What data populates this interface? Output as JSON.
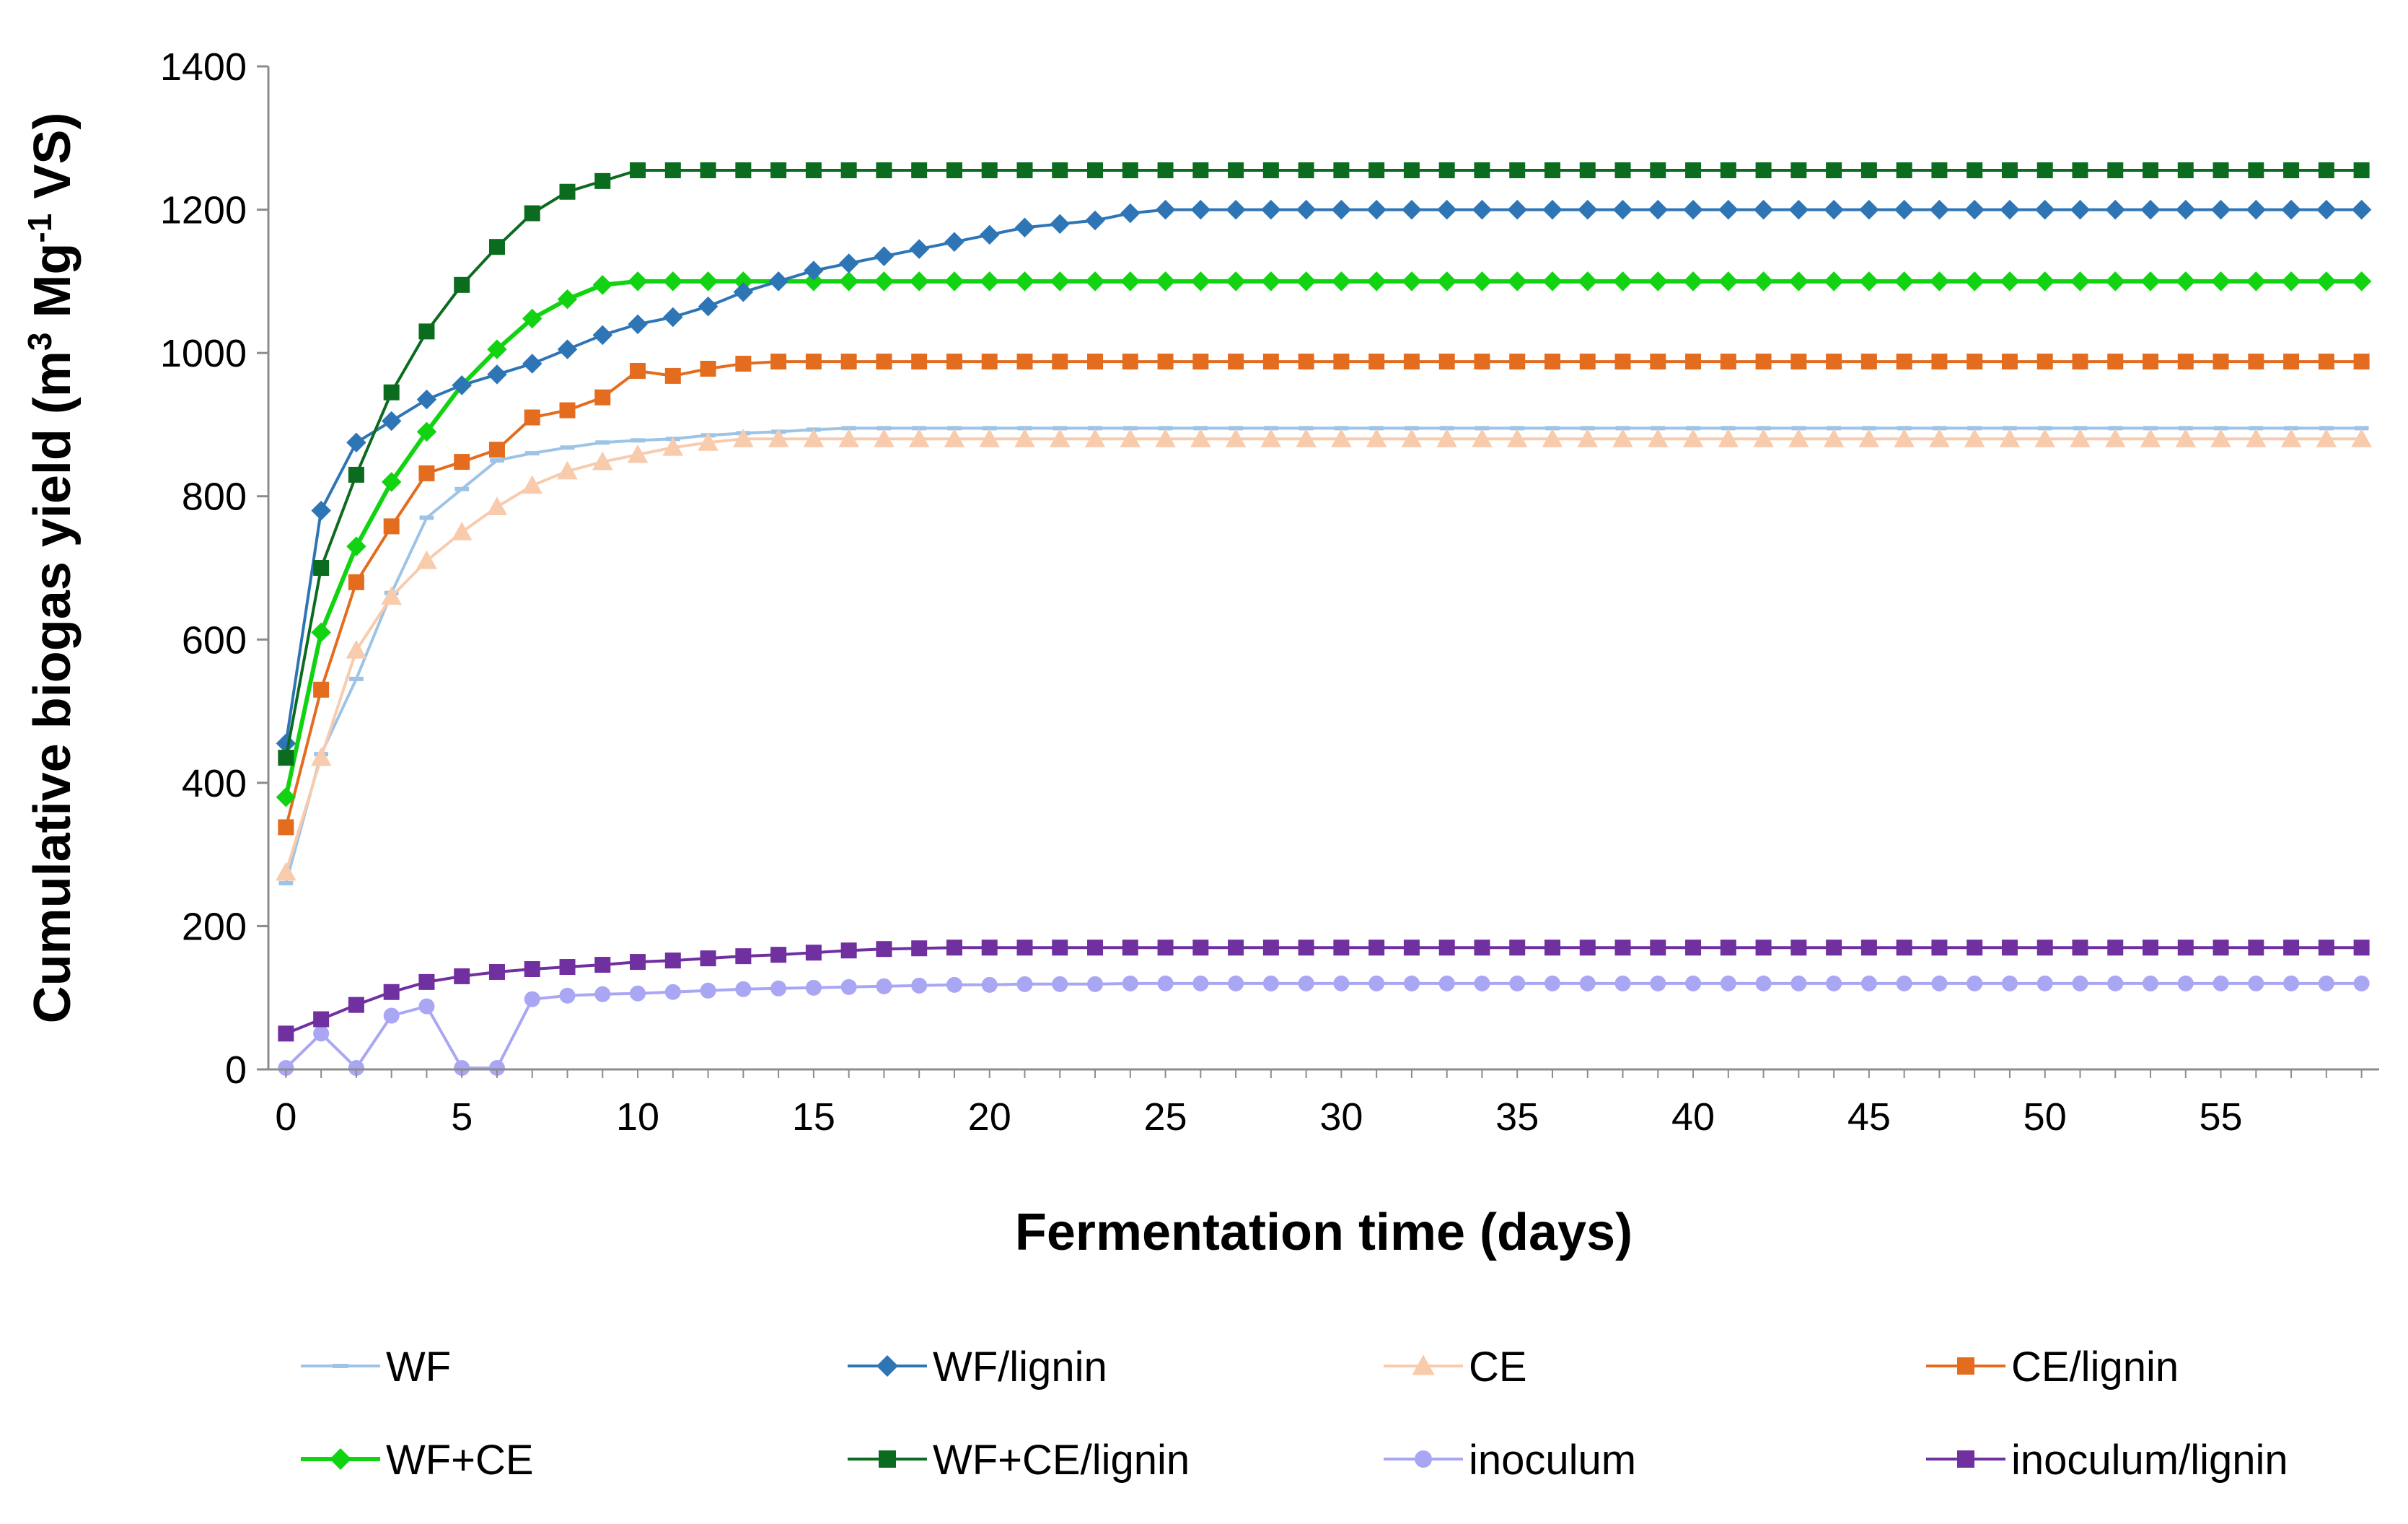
{
  "chart_data": {
    "type": "line",
    "title": "",
    "xlabel": "Fermentation time (days)",
    "ylabel_parts": [
      "Cumulative biogas yield (m",
      "3",
      " Mg",
      "-1",
      " VS)"
    ],
    "xlim": [
      -0.5,
      59.5
    ],
    "ylim": [
      0,
      1400
    ],
    "xticks": [
      0,
      5,
      10,
      15,
      20,
      25,
      30,
      35,
      40,
      45,
      50,
      55
    ],
    "yticks": [
      0,
      200,
      400,
      600,
      800,
      1000,
      1200,
      1400
    ],
    "grid": false,
    "legend_position": "bottom",
    "x": [
      0,
      1,
      2,
      3,
      4,
      5,
      6,
      7,
      8,
      9,
      10,
      11,
      12,
      13,
      14,
      15,
      16,
      17,
      18,
      19,
      20,
      21,
      22,
      23,
      24,
      25,
      26,
      27,
      28,
      29,
      30,
      31,
      32,
      33,
      34,
      35,
      36,
      37,
      38,
      39,
      40,
      41,
      42,
      43,
      44,
      45,
      46,
      47,
      48,
      49,
      50,
      51,
      52,
      53,
      54,
      55,
      56,
      57,
      58,
      59
    ],
    "series": [
      {
        "name": "WF",
        "color": "#9DC3E6",
        "marker": "dash",
        "values": [
          260,
          440,
          545,
          665,
          770,
          810,
          850,
          860,
          868,
          875,
          878,
          880,
          885,
          888,
          890,
          893,
          895,
          895,
          895,
          895,
          895,
          895,
          895,
          895,
          895,
          895,
          895,
          895,
          895,
          895,
          895,
          895,
          895,
          895,
          895,
          895,
          895,
          895,
          895,
          895,
          895,
          895,
          895,
          895,
          895,
          895,
          895,
          895,
          895,
          895,
          895,
          895,
          895,
          895,
          895,
          895,
          895,
          895,
          895,
          895
        ]
      },
      {
        "name": "WF/lignin",
        "color": "#2E75B6",
        "marker": "diamond",
        "values": [
          455,
          780,
          875,
          905,
          935,
          955,
          970,
          985,
          1005,
          1025,
          1040,
          1050,
          1065,
          1085,
          1100,
          1115,
          1125,
          1135,
          1145,
          1155,
          1165,
          1175,
          1180,
          1185,
          1195,
          1200,
          1200,
          1200,
          1200,
          1200,
          1200,
          1200,
          1200,
          1200,
          1200,
          1200,
          1200,
          1200,
          1200,
          1200,
          1200,
          1200,
          1200,
          1200,
          1200,
          1200,
          1200,
          1200,
          1200,
          1200,
          1200,
          1200,
          1200,
          1200,
          1200,
          1200,
          1200,
          1200,
          1200,
          1200
        ]
      },
      {
        "name": "CE",
        "color": "#F8CBAD",
        "marker": "triangle",
        "values": [
          275,
          435,
          585,
          660,
          710,
          750,
          785,
          815,
          835,
          848,
          858,
          868,
          875,
          880,
          880,
          880,
          880,
          880,
          880,
          880,
          880,
          880,
          880,
          880,
          880,
          880,
          880,
          880,
          880,
          880,
          880,
          880,
          880,
          880,
          880,
          880,
          880,
          880,
          880,
          880,
          880,
          880,
          880,
          880,
          880,
          880,
          880,
          880,
          880,
          880,
          880,
          880,
          880,
          880,
          880,
          880,
          880,
          880,
          880,
          880
        ]
      },
      {
        "name": "CE/lignin",
        "color": "#E46C1F",
        "marker": "square",
        "values": [
          338,
          530,
          680,
          758,
          832,
          848,
          865,
          910,
          920,
          938,
          975,
          968,
          978,
          985,
          988,
          988,
          988,
          988,
          988,
          988,
          988,
          988,
          988,
          988,
          988,
          988,
          988,
          988,
          988,
          988,
          988,
          988,
          988,
          988,
          988,
          988,
          988,
          988,
          988,
          988,
          988,
          988,
          988,
          988,
          988,
          988,
          988,
          988,
          988,
          988,
          988,
          988,
          988,
          988,
          988,
          988,
          988,
          988,
          988,
          988
        ]
      },
      {
        "name": "WF+CE",
        "color": "#12D312",
        "marker": "diamond",
        "values": [
          380,
          610,
          730,
          820,
          890,
          955,
          1005,
          1048,
          1075,
          1095,
          1100,
          1100,
          1100,
          1100,
          1100,
          1100,
          1100,
          1100,
          1100,
          1100,
          1100,
          1100,
          1100,
          1100,
          1100,
          1100,
          1100,
          1100,
          1100,
          1100,
          1100,
          1100,
          1100,
          1100,
          1100,
          1100,
          1100,
          1100,
          1100,
          1100,
          1100,
          1100,
          1100,
          1100,
          1100,
          1100,
          1100,
          1100,
          1100,
          1100,
          1100,
          1100,
          1100,
          1100,
          1100,
          1100,
          1100,
          1100,
          1100,
          1100
        ]
      },
      {
        "name": "WF+CE/lignin",
        "color": "#0B6B1E",
        "marker": "square",
        "values": [
          435,
          700,
          830,
          945,
          1030,
          1095,
          1148,
          1195,
          1225,
          1240,
          1255,
          1255,
          1255,
          1255,
          1255,
          1255,
          1255,
          1255,
          1255,
          1255,
          1255,
          1255,
          1255,
          1255,
          1255,
          1255,
          1255,
          1255,
          1255,
          1255,
          1255,
          1255,
          1255,
          1255,
          1255,
          1255,
          1255,
          1255,
          1255,
          1255,
          1255,
          1255,
          1255,
          1255,
          1255,
          1255,
          1255,
          1255,
          1255,
          1255,
          1255,
          1255,
          1255,
          1255,
          1255,
          1255,
          1255,
          1255,
          1255,
          1255
        ]
      },
      {
        "name": "inoculum",
        "color": "#A9A6F4",
        "marker": "circle",
        "values": [
          2,
          50,
          2,
          75,
          88,
          2,
          2,
          98,
          103,
          105,
          106,
          108,
          110,
          112,
          113,
          114,
          115,
          116,
          117,
          118,
          118,
          119,
          119,
          119,
          120,
          120,
          120,
          120,
          120,
          120,
          120,
          120,
          120,
          120,
          120,
          120,
          120,
          120,
          120,
          120,
          120,
          120,
          120,
          120,
          120,
          120,
          120,
          120,
          120,
          120,
          120,
          120,
          120,
          120,
          120,
          120,
          120,
          120,
          120,
          120
        ]
      },
      {
        "name": "inoculum/lignin",
        "color": "#7030A0",
        "marker": "square",
        "values": [
          50,
          70,
          90,
          108,
          122,
          130,
          136,
          140,
          143,
          146,
          150,
          152,
          155,
          158,
          160,
          163,
          166,
          168,
          169,
          170,
          170,
          170,
          170,
          170,
          170,
          170,
          170,
          170,
          170,
          170,
          170,
          170,
          170,
          170,
          170,
          170,
          170,
          170,
          170,
          170,
          170,
          170,
          170,
          170,
          170,
          170,
          170,
          170,
          170,
          170,
          170,
          170,
          170,
          170,
          170,
          170,
          170,
          170,
          170,
          170
        ]
      }
    ]
  }
}
